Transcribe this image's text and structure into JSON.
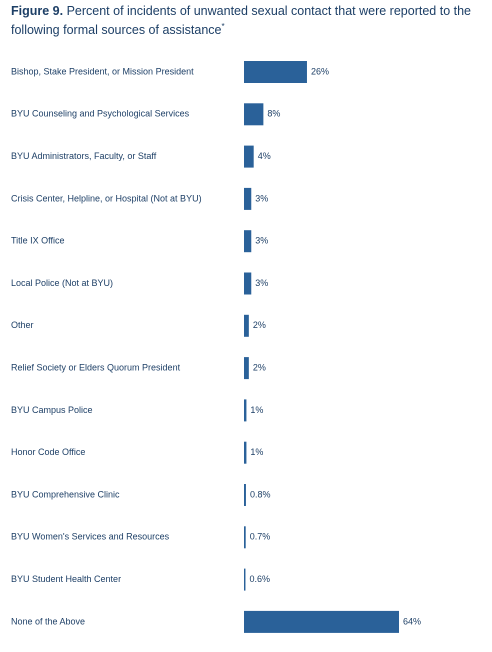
{
  "chart_data": {
    "type": "hbar",
    "title_label": "Figure 9.",
    "title": "Percent of incidents of unwanted sexual contact that were reported to the following formal sources of assistance",
    "title_note": "*",
    "categories": [
      "Bishop, Stake President, or Mission President",
      "BYU Counseling and Psychological Services",
      "BYU Administrators, Faculty, or Staff",
      "Crisis Center, Helpline, or Hospital (Not at BYU)",
      "Title IX Office",
      "Local Police (Not at BYU)",
      "Other",
      "Relief Society or Elders Quorum President",
      "BYU Campus Police",
      "Honor Code Office",
      "BYU Comprehensive Clinic",
      "BYU Women's Services and Resources",
      "BYU Student Health Center",
      "None of the Above"
    ],
    "values": [
      26,
      8,
      4,
      3,
      3,
      3,
      2,
      2,
      1,
      1,
      0.8,
      0.7,
      0.6,
      64
    ],
    "value_labels": [
      "26%",
      "8%",
      "4%",
      "3%",
      "3%",
      "3%",
      "2%",
      "2%",
      "1%",
      "1%",
      "0.8%",
      "0.7%",
      "0.6%",
      "64%"
    ],
    "color": "#2a6199"
  }
}
